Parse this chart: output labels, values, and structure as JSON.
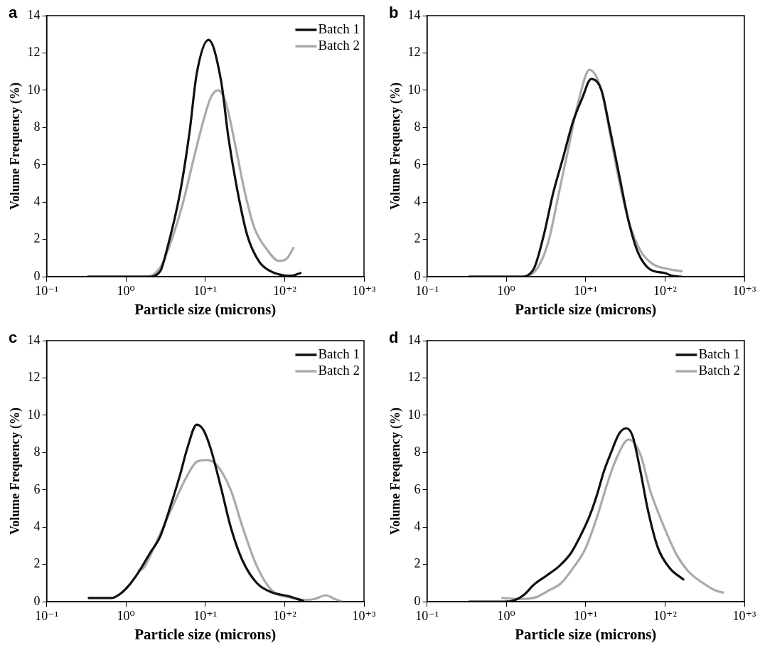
{
  "chart_data": [
    {
      "type": "line",
      "title": "a",
      "xlabel": "Particle size (microns)",
      "ylabel": "Volume Frequency (%)",
      "log": "x",
      "xlim": [
        0.1,
        1000
      ],
      "xticks": [
        {
          "value": 0.1,
          "label": "10⁻¹"
        },
        {
          "value": 1,
          "label": "10⁰"
        },
        {
          "value": 10,
          "label": "10⁺¹"
        },
        {
          "value": 100,
          "label": "10⁺²"
        },
        {
          "value": 1000,
          "label": "10⁺³"
        }
      ],
      "ylim": [
        0,
        14
      ],
      "yticks": [
        0,
        2,
        4,
        6,
        8,
        10,
        12,
        14
      ],
      "grid": false,
      "legend": "top right",
      "marker": "none",
      "line_style": "solid",
      "series": [
        {
          "name": "Batch 1",
          "color": "#111111",
          "x": [
            0.33,
            1.9,
            2.7,
            3.3,
            4.8,
            6.3,
            7.8,
            11,
            15.8,
            19.5,
            25.7,
            33.9,
            47.9,
            63.1,
            120,
            158
          ],
          "values": [
            0,
            0,
            0.3,
            1.5,
            4.5,
            7.7,
            10.9,
            12.7,
            10.5,
            7.5,
            4.5,
            2.2,
            0.8,
            0.35,
            0.05,
            0.2
          ]
        },
        {
          "name": "Batch 2",
          "color": "#aaaaaa",
          "x": [
            0.33,
            1.8,
            2.7,
            3.5,
            5.1,
            7.2,
            9.5,
            11.7,
            14.5,
            18.2,
            24,
            31.6,
            41.7,
            58.9,
            85.1,
            105,
            129
          ],
          "values": [
            0,
            0,
            0.5,
            1.6,
            3.8,
            6.4,
            8.4,
            9.6,
            10,
            9.3,
            7,
            4.5,
            2.6,
            1.5,
            0.85,
            0.95,
            1.55
          ]
        }
      ]
    },
    {
      "type": "line",
      "title": "b",
      "xlabel": "Particle size (microns)",
      "ylabel": "Volume Frequency (%)",
      "log": "x",
      "xlim": [
        0.1,
        1000
      ],
      "xticks": [
        {
          "value": 0.1,
          "label": "10⁻¹"
        },
        {
          "value": 1,
          "label": "10⁰"
        },
        {
          "value": 10,
          "label": "10⁺¹"
        },
        {
          "value": 100,
          "label": "10⁺²"
        },
        {
          "value": 1000,
          "label": "10⁺³"
        }
      ],
      "ylim": [
        0,
        14
      ],
      "yticks": [
        0,
        2,
        4,
        6,
        8,
        10,
        12,
        14
      ],
      "grid": false,
      "marker": "none",
      "line_style": "solid",
      "series": [
        {
          "color": "#111111",
          "x": [
            0.34,
            1.48,
            2.2,
            2.95,
            3.9,
            5.2,
            6.9,
            9.1,
            11.7,
            15.8,
            20,
            26.3,
            34.7,
            45.7,
            64.6,
            100,
            123,
            162
          ],
          "values": [
            0,
            0,
            0.4,
            2.2,
            4.5,
            6.4,
            8.3,
            9.6,
            10.6,
            10,
            8,
            5.5,
            3,
            1.3,
            0.4,
            0.2,
            0.05,
            0
          ]
        },
        {
          "color": "#aaaaaa",
          "x": [
            0.34,
            1.48,
            2.4,
            3.4,
            4.6,
            6,
            7.9,
            11.2,
            15.8,
            20,
            26.3,
            34.7,
            49,
            69.2,
            115,
            162
          ],
          "values": [
            0,
            0,
            0.4,
            1.9,
            4.5,
            6.8,
            9.2,
            11.1,
            10,
            7.8,
            5.2,
            3,
            1.4,
            0.7,
            0.4,
            0.3
          ]
        }
      ]
    },
    {
      "type": "line",
      "title": "c",
      "xlabel": "Particle size (microns)",
      "ylabel": "Volume Frequency (%)",
      "log": "x",
      "xlim": [
        0.1,
        1000
      ],
      "xticks": [
        {
          "value": 0.1,
          "label": "10⁻¹"
        },
        {
          "value": 1,
          "label": "10⁰"
        },
        {
          "value": 10,
          "label": "10⁺¹"
        },
        {
          "value": 100,
          "label": "10⁺²"
        },
        {
          "value": 1000,
          "label": "10⁺³"
        }
      ],
      "ylim": [
        0,
        14
      ],
      "yticks": [
        0,
        2,
        4,
        6,
        8,
        10,
        12,
        14
      ],
      "grid": false,
      "legend": "top right",
      "marker": "none",
      "line_style": "solid",
      "series": [
        {
          "name": "Batch 1",
          "color": "#111111",
          "x": [
            0.34,
            0.65,
            0.83,
            1.1,
            1.45,
            2,
            2.7,
            3.5,
            4.8,
            5.9,
            7.8,
            9.5,
            11.7,
            15.8,
            20.9,
            29.5,
            44.7,
            69.2,
            112,
            170
          ],
          "values": [
            0.2,
            0.2,
            0.4,
            0.9,
            1.6,
            2.6,
            3.5,
            4.9,
            6.8,
            8.2,
            9.5,
            9.2,
            8.2,
            6.1,
            4,
            2.2,
            1,
            0.5,
            0.3,
            0.05
          ]
        },
        {
          "name": "Batch 2",
          "color": "#aaaaaa",
          "x": [
            1.45,
            1.66,
            2.3,
            3.5,
            5.5,
            7.8,
            10.2,
            13.5,
            20.9,
            29.5,
            44.7,
            69.2,
            112,
            182,
            240,
            331,
            427,
            537
          ],
          "values": [
            1.7,
            1.8,
            3,
            4.7,
            6.5,
            7.5,
            7.6,
            7.4,
            6,
            4,
            1.9,
            0.6,
            0.25,
            0.1,
            0.15,
            0.35,
            0.15,
            0
          ]
        }
      ]
    },
    {
      "type": "line",
      "title": "d",
      "xlabel": "Particle size (microns)",
      "ylabel": "Volume Frequency (%)",
      "log": "x",
      "xlim": [
        0.1,
        1000
      ],
      "xticks": [
        {
          "value": 0.1,
          "label": "10⁻¹"
        },
        {
          "value": 1,
          "label": "10⁰"
        },
        {
          "value": 10,
          "label": "10⁺¹"
        },
        {
          "value": 100,
          "label": "10⁺²"
        },
        {
          "value": 1000,
          "label": "10⁺³"
        }
      ],
      "ylim": [
        0,
        14
      ],
      "yticks": [
        0,
        2,
        4,
        6,
        8,
        10,
        12,
        14
      ],
      "grid": false,
      "legend": "top right",
      "marker": "none",
      "line_style": "solid",
      "series": [
        {
          "name": "Batch 1",
          "color": "#111111",
          "x": [
            0.34,
            0.95,
            1.3,
            1.7,
            2.2,
            3.2,
            4.6,
            6.5,
            8.5,
            11.2,
            13.8,
            17,
            20.9,
            26.3,
            32.4,
            38.9,
            49,
            60.3,
            81.3,
            115,
            170
          ],
          "values": [
            0,
            0,
            0.1,
            0.4,
            0.9,
            1.4,
            1.9,
            2.6,
            3.5,
            4.6,
            5.7,
            7,
            8,
            9,
            9.3,
            8.9,
            7,
            5,
            2.9,
            1.8,
            1.2
          ]
        },
        {
          "name": "Batch 2",
          "color": "#aaaaaa",
          "x": [
            0.89,
            1.48,
            2.4,
            3.4,
            4.9,
            6.9,
            9.8,
            13.8,
            18.6,
            24.5,
            34.7,
            49,
            64.6,
            93.3,
            141,
            200,
            302,
            437,
            537
          ],
          "values": [
            0.2,
            0.15,
            0.25,
            0.6,
            1,
            1.8,
            2.8,
            4.5,
            6.3,
            7.7,
            8.7,
            7.9,
            6,
            4.2,
            2.5,
            1.6,
            1,
            0.6,
            0.5
          ]
        }
      ]
    }
  ]
}
